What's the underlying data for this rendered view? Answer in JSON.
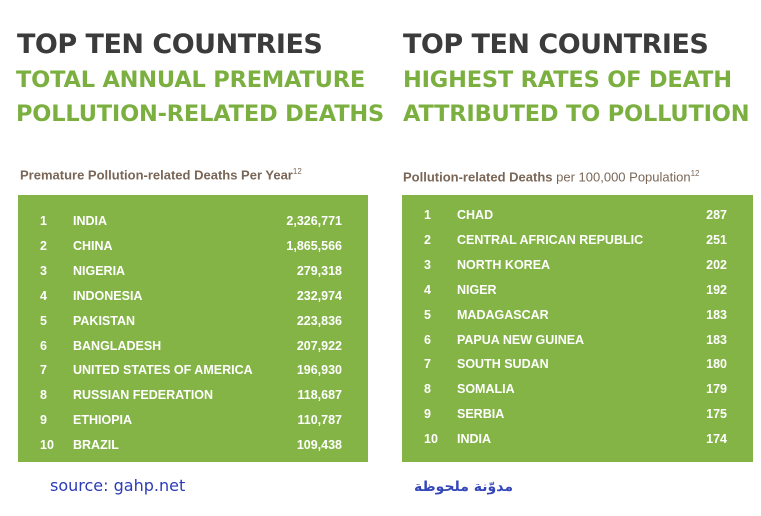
{
  "left": {
    "title": "TOP TEN COUNTRIES",
    "subtitle1": "TOTAL ANNUAL PREMATURE",
    "subtitle2": "POLLUTION-RELATED DEATHS",
    "table_caption_bold": "Premature Pollution-related Deaths Per Year",
    "table_caption_rest": "",
    "footnote": "12",
    "rows": [
      {
        "rank": "1",
        "country": "INDIA",
        "value": "2,326,771"
      },
      {
        "rank": "2",
        "country": "CHINA",
        "value": "1,865,566"
      },
      {
        "rank": "3",
        "country": "NIGERIA",
        "value": "279,318"
      },
      {
        "rank": "4",
        "country": "INDONESIA",
        "value": "232,974"
      },
      {
        "rank": "5",
        "country": "PAKISTAN",
        "value": "223,836"
      },
      {
        "rank": "6",
        "country": "BANGLADESH",
        "value": "207,922"
      },
      {
        "rank": "7",
        "country": "UNITED STATES OF AMERICA",
        "value": "196,930"
      },
      {
        "rank": "8",
        "country": "RUSSIAN FEDERATION",
        "value": "118,687"
      },
      {
        "rank": "9",
        "country": "ETHIOPIA",
        "value": "110,787"
      },
      {
        "rank": "10",
        "country": "BRAZIL",
        "value": "109,438"
      }
    ]
  },
  "right": {
    "title": "TOP TEN COUNTRIES",
    "subtitle1": "HIGHEST RATES OF DEATH",
    "subtitle2": "ATTRIBUTED TO POLLUTION",
    "table_caption_bold": "Pollution-related Deaths",
    "table_caption_rest": " per 100,000 Population",
    "footnote": "12",
    "rows": [
      {
        "rank": "1",
        "country": "CHAD",
        "value": "287"
      },
      {
        "rank": "2",
        "country": "CENTRAL AFRICAN REPUBLIC",
        "value": "251"
      },
      {
        "rank": "3",
        "country": "NORTH KOREA",
        "value": "202"
      },
      {
        "rank": "4",
        "country": "NIGER",
        "value": "192"
      },
      {
        "rank": "5",
        "country": "MADAGASCAR",
        "value": "183"
      },
      {
        "rank": "6",
        "country": "PAPUA NEW GUINEA",
        "value": "183"
      },
      {
        "rank": "7",
        "country": "SOUTH SUDAN",
        "value": "180"
      },
      {
        "rank": "8",
        "country": "SOMALIA",
        "value": "179"
      },
      {
        "rank": "9",
        "country": "SERBIA",
        "value": "175"
      },
      {
        "rank": "10",
        "country": "INDIA",
        "value": "174"
      }
    ]
  },
  "source": "source: gahp.net",
  "watermark": "مدوّنة ملحوظة",
  "colors": {
    "green": "#84b446",
    "title": "#3b3b3b",
    "subtitle": "#7bb040",
    "caption": "#7a6656",
    "source": "#2a3bb8"
  }
}
